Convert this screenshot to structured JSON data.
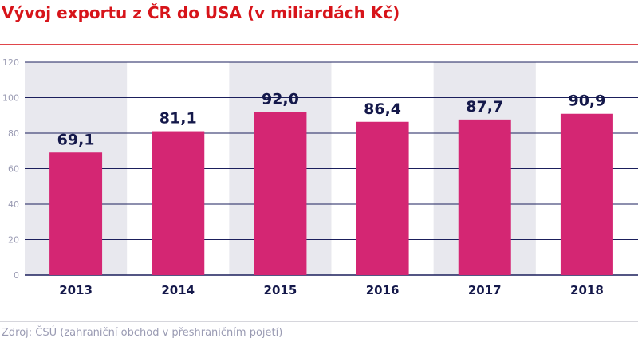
{
  "title": "Vývoj exportu z ČR do USA (v miliardách Kč)",
  "source": "Zdroj: ČSÚ (zahraniční obchod v přeshraničním pojetí)",
  "colors": {
    "title": "#d7141a",
    "bar": "#d42673",
    "band": "#e8e8ee",
    "axis": "#1b1f5c",
    "label": "#14184a",
    "tick": "#9a9bb3"
  },
  "chart_data": {
    "type": "bar",
    "categories": [
      "2013",
      "2014",
      "2015",
      "2016",
      "2017",
      "2018"
    ],
    "values": [
      69.1,
      81.1,
      92.0,
      86.4,
      87.7,
      90.9
    ],
    "data_labels": [
      "69,1",
      "81,1",
      "92,0",
      "86,4",
      "87,7",
      "90,9"
    ],
    "yticks": [
      0,
      20,
      40,
      60,
      80,
      100,
      120
    ],
    "ylim": [
      0,
      120
    ],
    "grid": true,
    "alternating_bands": true
  }
}
